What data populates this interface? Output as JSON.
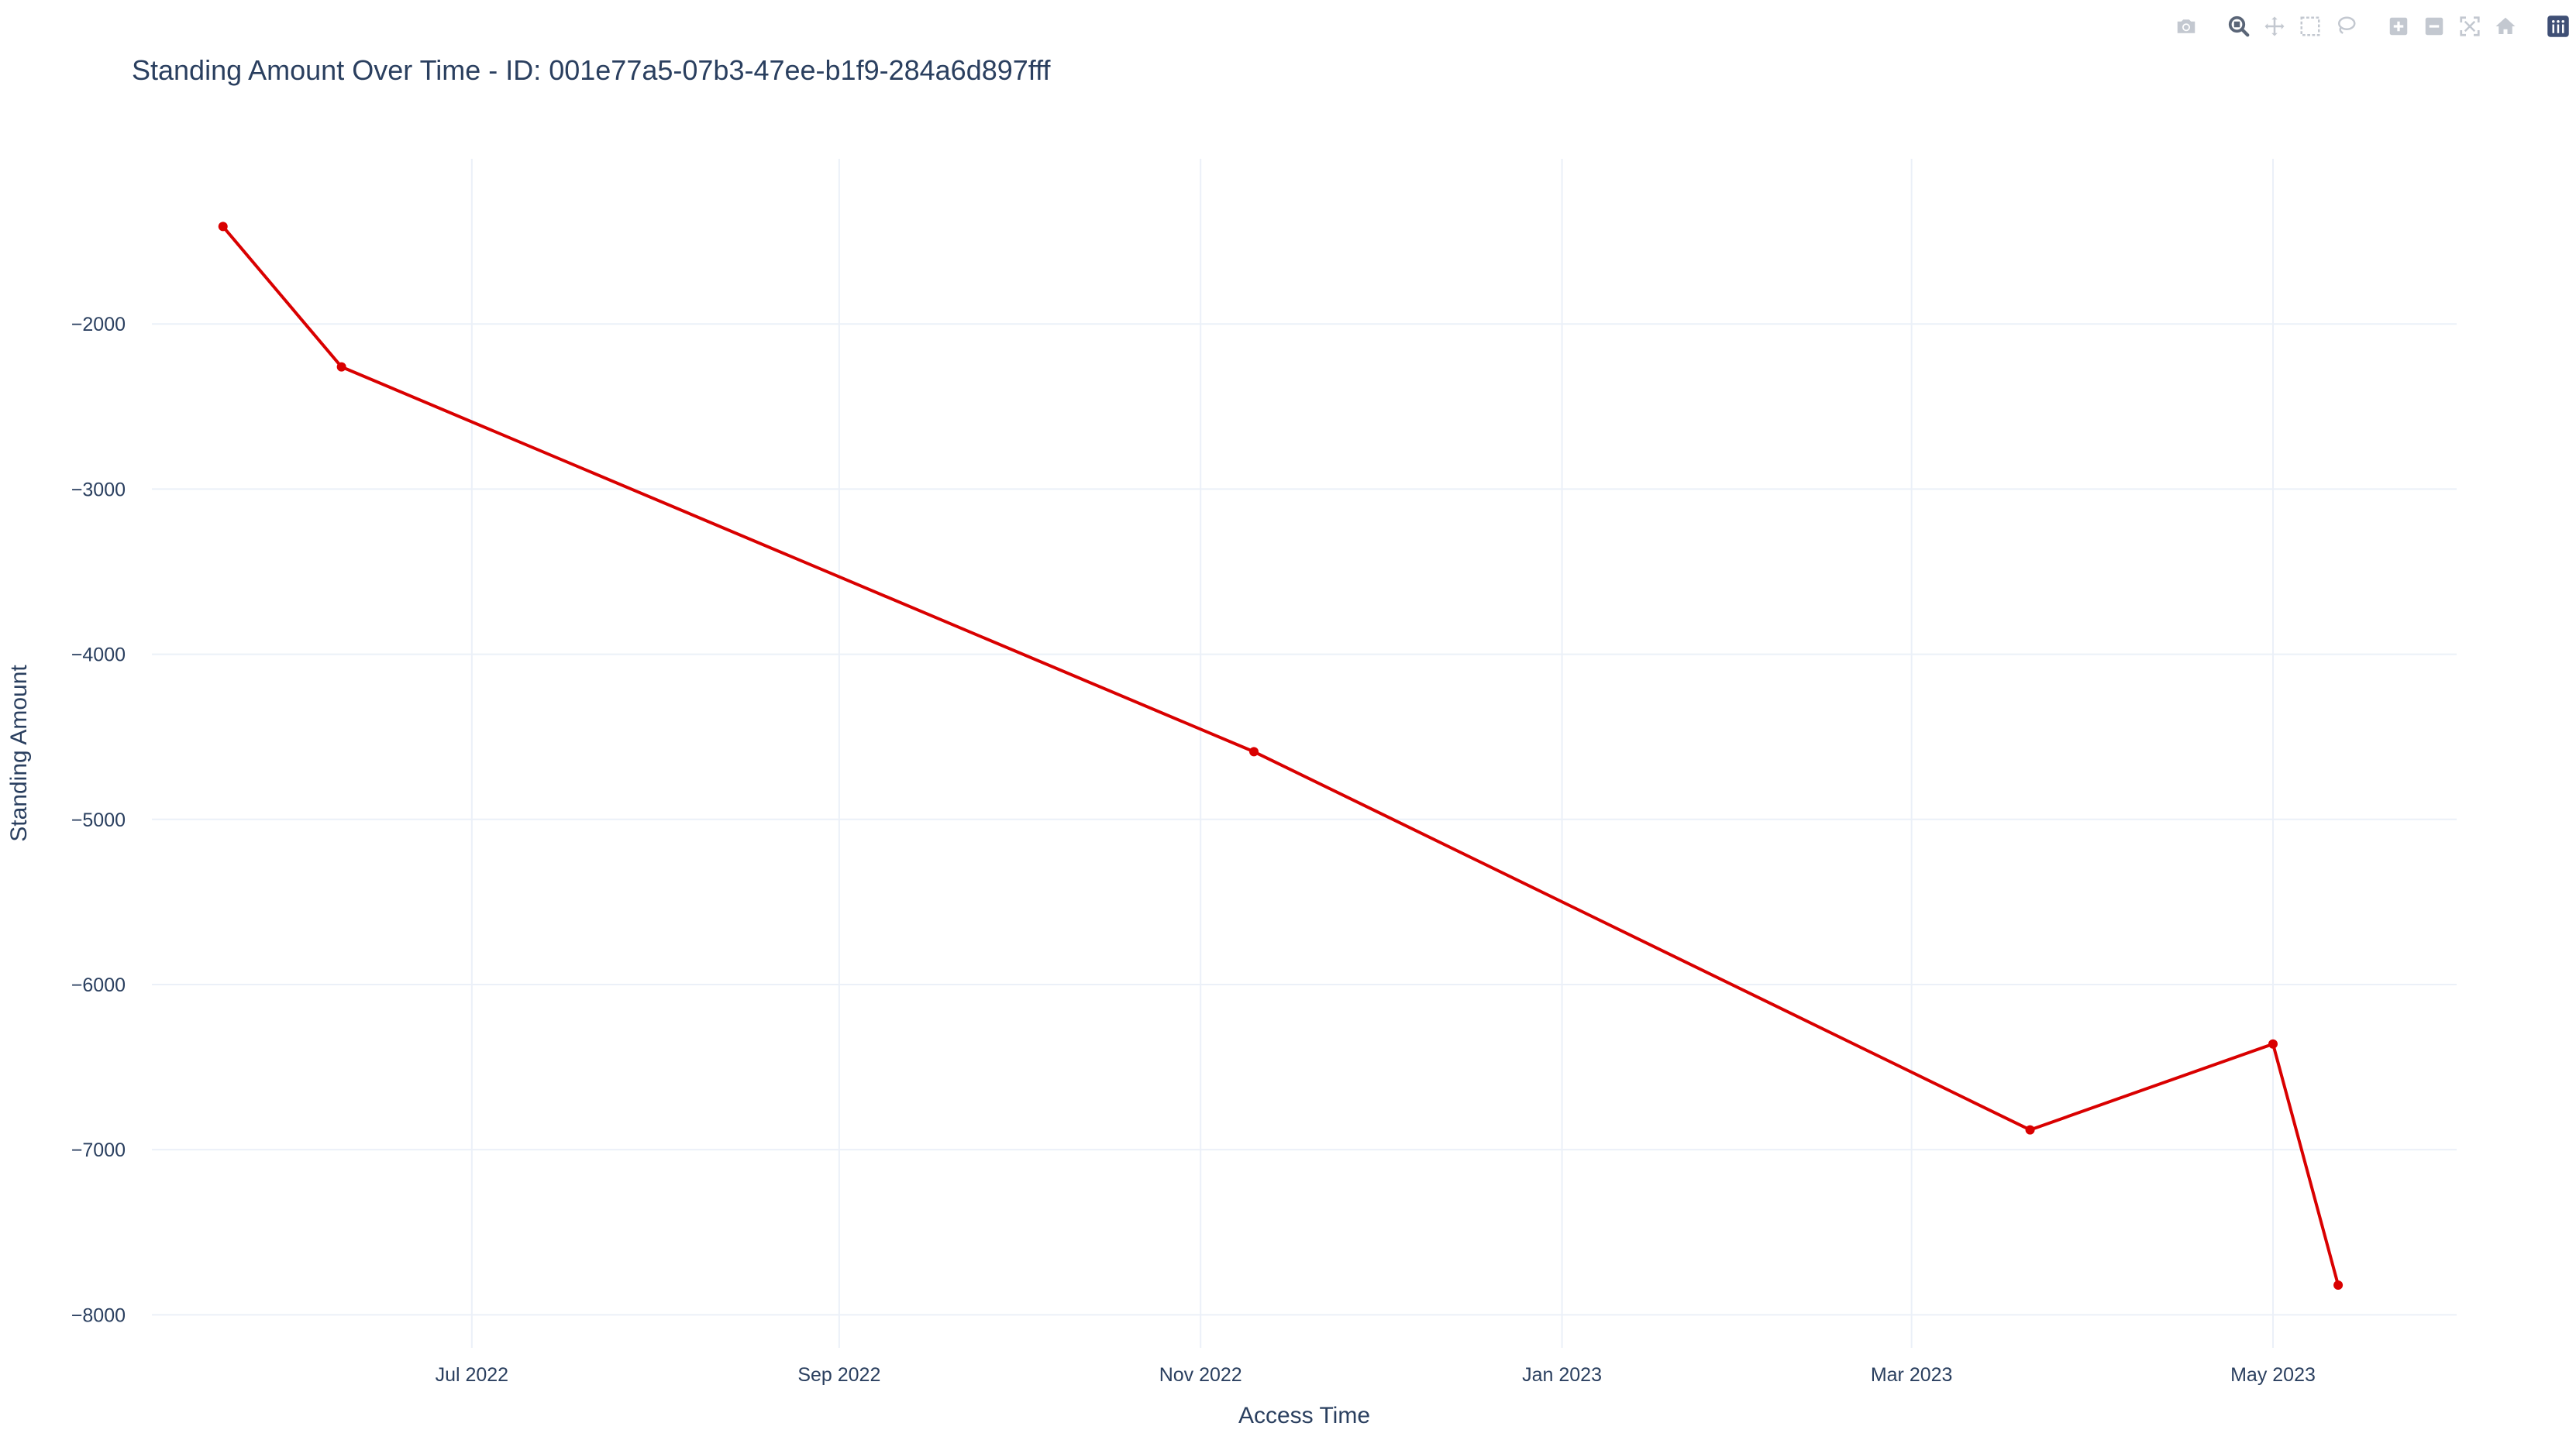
{
  "chart_data": {
    "type": "line",
    "title": "Standing Amount Over Time - ID: 001e77a5-07b3-47ee-b1f9-284a6d897fff",
    "xlabel": "Access Time",
    "ylabel": "Standing Amount",
    "x_ticks": [
      {
        "date": "2022-07-01",
        "label": "Jul 2022"
      },
      {
        "date": "2022-09-01",
        "label": "Sep 2022"
      },
      {
        "date": "2022-11-01",
        "label": "Nov 2022"
      },
      {
        "date": "2023-01-01",
        "label": "Jan 2023"
      },
      {
        "date": "2023-03-01",
        "label": "Mar 2023"
      },
      {
        "date": "2023-05-01",
        "label": "May 2023"
      }
    ],
    "y_ticks": [
      -2000,
      -3000,
      -4000,
      -5000,
      -6000,
      -7000,
      -8000
    ],
    "y_tick_labels": [
      "−2000",
      "−3000",
      "−4000",
      "−5000",
      "−6000",
      "−7000",
      "−8000"
    ],
    "xlim": [
      "2022-05-08",
      "2023-06-01"
    ],
    "ylim": [
      -8200,
      -1000
    ],
    "series": [
      {
        "color": "#d90000",
        "x": [
          "2022-05-20",
          "2022-06-09",
          "2022-11-10",
          "2023-03-21",
          "2023-05-01",
          "2023-05-12"
        ],
        "y": [
          -1410,
          -2260,
          -4590,
          -6880,
          -6360,
          -7820
        ]
      }
    ],
    "grid": true,
    "grid_color": "#ebf0f8",
    "line_color": "#d90000",
    "text_color": "#2a3f5f"
  },
  "modebar": {
    "buttons": [
      "camera-icon",
      "zoom-icon",
      "pan-icon",
      "box-select-icon",
      "lasso-select-icon",
      "zoom-in-icon",
      "zoom-out-icon",
      "autoscale-icon",
      "reset-axes-icon",
      "plotly-logo-icon"
    ]
  }
}
